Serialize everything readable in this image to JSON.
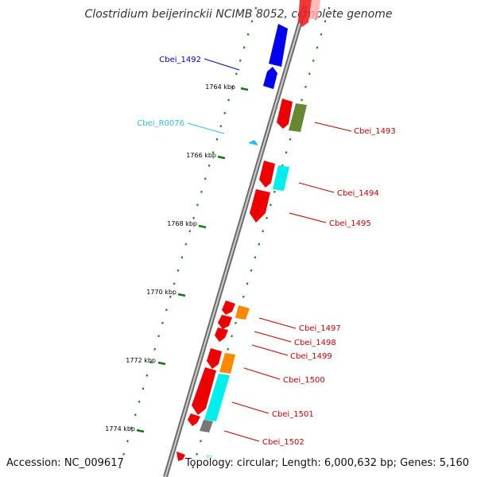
{
  "title": "Clostridium beijerinckii NCIMB 8052, complete genome",
  "footer": {
    "accession": "Accession: NC_009617",
    "summary": "Topology: circular; Length: 6,000,632 bp; Genes: 5,160"
  },
  "scale_labels": [
    "1764 kbp",
    "1766 kbp",
    "1768 kbp",
    "1770 kbp",
    "1772 kbp",
    "1774 kbp"
  ],
  "gene_labels": [
    {
      "text": "Cbei_1492",
      "color": "#0000cc"
    },
    {
      "text": "Cbei_R0076",
      "color": "#33bbee"
    },
    {
      "text": "Cbei_1493",
      "color": "#cc0000"
    },
    {
      "text": "Cbei_1494",
      "color": "#cc0000"
    },
    {
      "text": "Cbei_1495",
      "color": "#cc0000"
    },
    {
      "text": "Cbei_1497",
      "color": "#cc0000"
    },
    {
      "text": "Cbei_1498",
      "color": "#cc0000"
    },
    {
      "text": "Cbei_1499",
      "color": "#cc0000"
    },
    {
      "text": "Cbei_1500",
      "color": "#cc0000"
    },
    {
      "text": "Cbei_1501",
      "color": "#cc0000"
    },
    {
      "text": "Cbei_1502",
      "color": "#cc0000"
    }
  ],
  "colors": {
    "cds_forward": "#ee0000",
    "cds_reverse": "#ee0000",
    "blue_gene": "#0000ee",
    "rna_gene": "#22bbee",
    "olive": "#668833",
    "orange": "#ff8800",
    "cyan": "#00eeee",
    "gray": "#777777",
    "backbone": "#888888",
    "dots": "#118811"
  }
}
